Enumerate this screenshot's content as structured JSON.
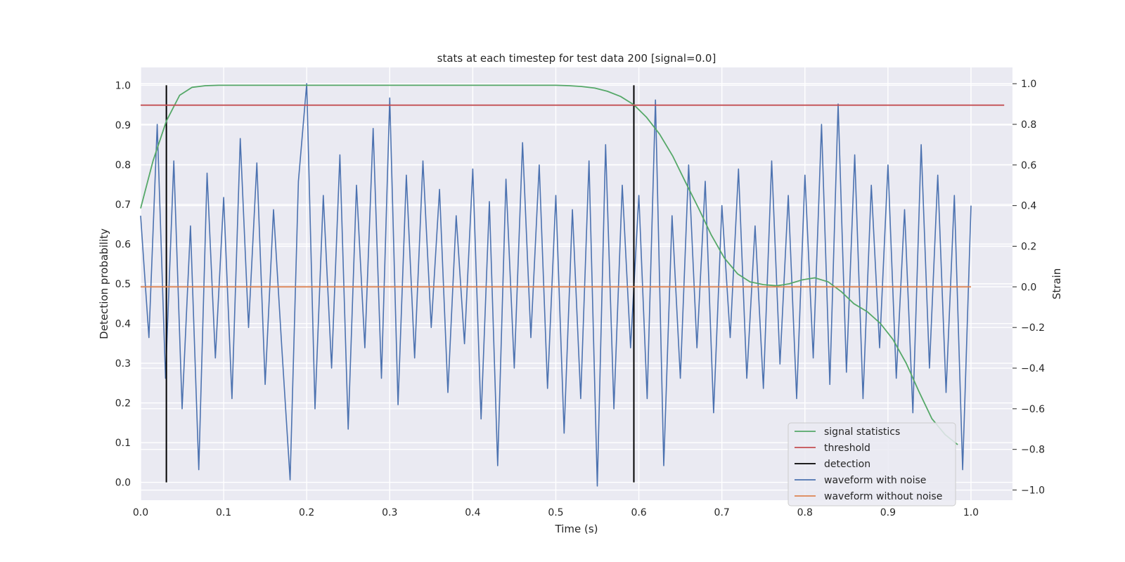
{
  "chart_data": {
    "type": "line",
    "title": "stats at each timestep for test data 200 [signal=0.0]",
    "xlabel": "Time (s)",
    "ylabel_left": "Detection probability",
    "ylabel_right": "Strain",
    "xlim": [
      0.0,
      1.05
    ],
    "ylim_left": [
      -0.045,
      1.045
    ],
    "ylim_right": [
      -1.05,
      1.08
    ],
    "xticks": [
      "0.0",
      "0.1",
      "0.2",
      "0.3",
      "0.4",
      "0.5",
      "0.6",
      "0.7",
      "0.8",
      "0.9",
      "1.0"
    ],
    "yticks_left": [
      "0.0",
      "0.1",
      "0.2",
      "0.3",
      "0.4",
      "0.5",
      "0.6",
      "0.7",
      "0.8",
      "0.9",
      "1.0"
    ],
    "yticks_right": [
      "−1.0",
      "−0.8",
      "−0.6",
      "−0.4",
      "−0.2",
      "0.0",
      "0.2",
      "0.4",
      "0.6",
      "0.8",
      "1.0"
    ],
    "grid": true,
    "legend_position": "lower right",
    "series": [
      {
        "name": "signal statistics",
        "axis": "left",
        "color": "#55a868",
        "x": [
          0.0,
          0.015,
          0.031,
          0.047,
          0.062,
          0.078,
          0.094,
          0.109,
          0.125,
          0.2,
          0.3,
          0.4,
          0.5,
          0.516,
          0.531,
          0.547,
          0.562,
          0.578,
          0.594,
          0.609,
          0.625,
          0.641,
          0.656,
          0.672,
          0.687,
          0.703,
          0.719,
          0.734,
          0.75,
          0.766,
          0.781,
          0.797,
          0.812,
          0.828,
          0.844,
          0.859,
          0.875,
          0.891,
          0.906,
          0.922,
          0.937,
          0.953,
          0.969,
          0.984
        ],
        "y": [
          0.69,
          0.81,
          0.91,
          0.975,
          0.995,
          0.999,
          1.0,
          1.0,
          1.0,
          1.0,
          1.0,
          1.0,
          1.0,
          0.999,
          0.997,
          0.993,
          0.985,
          0.972,
          0.951,
          0.92,
          0.877,
          0.821,
          0.757,
          0.69,
          0.624,
          0.565,
          0.525,
          0.505,
          0.498,
          0.495,
          0.5,
          0.51,
          0.515,
          0.505,
          0.48,
          0.45,
          0.43,
          0.4,
          0.36,
          0.3,
          0.23,
          0.16,
          0.12,
          0.095
        ]
      },
      {
        "name": "threshold",
        "axis": "left",
        "color": "#c44e52",
        "x": [
          0.0,
          1.04
        ],
        "y": [
          0.95,
          0.95
        ]
      },
      {
        "name": "detection",
        "axis": "left",
        "color": "#000000",
        "x": [
          0.031,
          0.594
        ],
        "y_range": [
          0.0,
          1.0
        ]
      },
      {
        "name": "waveform with noise",
        "axis": "right",
        "color": "#4c72b0",
        "x": [
          0.0,
          0.01,
          0.02,
          0.03,
          0.04,
          0.05,
          0.06,
          0.07,
          0.08,
          0.09,
          0.1,
          0.11,
          0.12,
          0.13,
          0.14,
          0.15,
          0.16,
          0.17,
          0.18,
          0.19,
          0.2,
          0.21,
          0.22,
          0.23,
          0.24,
          0.25,
          0.26,
          0.27,
          0.28,
          0.29,
          0.3,
          0.31,
          0.32,
          0.33,
          0.34,
          0.35,
          0.36,
          0.37,
          0.38,
          0.39,
          0.4,
          0.41,
          0.42,
          0.43,
          0.44,
          0.45,
          0.46,
          0.47,
          0.48,
          0.49,
          0.5,
          0.51,
          0.52,
          0.53,
          0.54,
          0.55,
          0.56,
          0.57,
          0.58,
          0.59,
          0.6,
          0.61,
          0.62,
          0.63,
          0.64,
          0.65,
          0.66,
          0.67,
          0.68,
          0.69,
          0.7,
          0.71,
          0.72,
          0.73,
          0.74,
          0.75,
          0.76,
          0.77,
          0.78,
          0.79,
          0.8,
          0.81,
          0.82,
          0.83,
          0.84,
          0.85,
          0.86,
          0.87,
          0.88,
          0.89,
          0.9,
          0.91,
          0.92,
          0.93,
          0.94,
          0.95,
          0.96,
          0.97,
          0.98,
          0.99,
          1.0
        ],
        "y": [
          0.35,
          -0.25,
          0.8,
          -0.45,
          0.62,
          -0.6,
          0.3,
          -0.9,
          0.56,
          -0.35,
          0.44,
          -0.55,
          0.73,
          -0.2,
          0.61,
          -0.48,
          0.38,
          -0.3,
          -0.95,
          0.52,
          1.0,
          -0.6,
          0.45,
          -0.4,
          0.65,
          -0.7,
          0.5,
          -0.3,
          0.78,
          -0.45,
          0.93,
          -0.58,
          0.55,
          -0.35,
          0.62,
          -0.2,
          0.48,
          -0.52,
          0.35,
          -0.28,
          0.58,
          -0.65,
          0.42,
          -0.88,
          0.53,
          -0.4,
          0.71,
          -0.25,
          0.6,
          -0.5,
          0.45,
          -0.72,
          0.38,
          -0.55,
          0.62,
          -0.98,
          0.7,
          -0.6,
          0.5,
          -0.3,
          0.45,
          -0.55,
          0.92,
          -0.88,
          0.35,
          -0.45,
          0.6,
          -0.3,
          0.52,
          -0.62,
          0.4,
          -0.25,
          0.58,
          -0.45,
          0.3,
          -0.5,
          0.62,
          -0.38,
          0.45,
          -0.55,
          0.55,
          -0.35,
          0.8,
          -0.48,
          0.9,
          -0.42,
          0.65,
          -0.55,
          0.5,
          -0.3,
          0.6,
          -0.45,
          0.38,
          -0.62,
          0.7,
          -0.4,
          0.55,
          -0.52,
          0.45,
          -0.9,
          0.4
        ]
      },
      {
        "name": "waveform without noise",
        "axis": "right",
        "color": "#dd8452",
        "x": [
          0.0,
          1.0
        ],
        "y": [
          0.0,
          0.0
        ]
      }
    ]
  }
}
